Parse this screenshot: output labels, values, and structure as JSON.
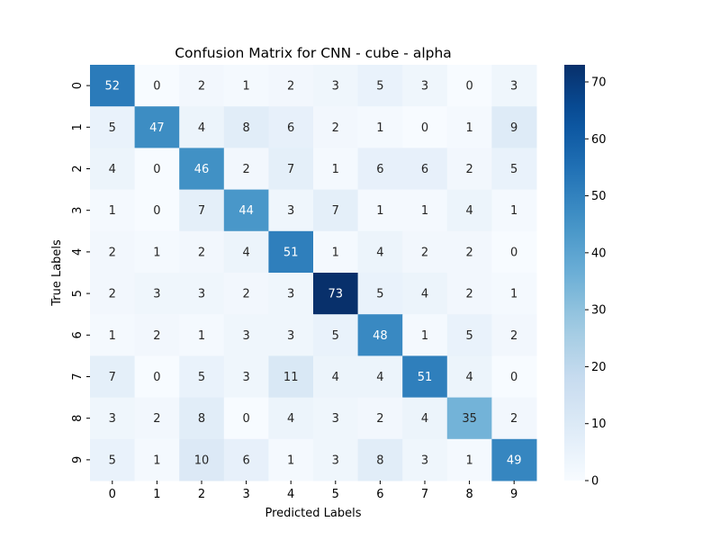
{
  "chart_data": {
    "type": "heatmap",
    "title": "Confusion Matrix for CNN - cube - alpha",
    "xlabel": "Predicted Labels",
    "ylabel": "True Labels",
    "x_categories": [
      "0",
      "1",
      "2",
      "3",
      "4",
      "5",
      "6",
      "7",
      "8",
      "9"
    ],
    "y_categories": [
      "0",
      "1",
      "2",
      "3",
      "4",
      "5",
      "6",
      "7",
      "8",
      "9"
    ],
    "values": [
      [
        52,
        0,
        2,
        1,
        2,
        3,
        5,
        3,
        0,
        3
      ],
      [
        5,
        47,
        4,
        8,
        6,
        2,
        1,
        0,
        1,
        9
      ],
      [
        4,
        0,
        46,
        2,
        7,
        1,
        6,
        6,
        2,
        5
      ],
      [
        1,
        0,
        7,
        44,
        3,
        7,
        1,
        1,
        4,
        1
      ],
      [
        2,
        1,
        2,
        4,
        51,
        1,
        4,
        2,
        2,
        0
      ],
      [
        2,
        3,
        3,
        2,
        3,
        73,
        5,
        4,
        2,
        1
      ],
      [
        1,
        2,
        1,
        3,
        3,
        5,
        48,
        1,
        5,
        2
      ],
      [
        7,
        0,
        5,
        3,
        11,
        4,
        4,
        51,
        4,
        0
      ],
      [
        3,
        2,
        8,
        0,
        4,
        3,
        2,
        4,
        35,
        2
      ],
      [
        5,
        1,
        10,
        6,
        1,
        3,
        8,
        3,
        1,
        49
      ]
    ],
    "colormap": "Blues",
    "color_range": [
      0,
      73
    ],
    "colorbar": {
      "ticks": [
        0,
        10,
        20,
        30,
        40,
        50,
        60,
        70
      ],
      "placement": "right"
    },
    "grid": false
  }
}
